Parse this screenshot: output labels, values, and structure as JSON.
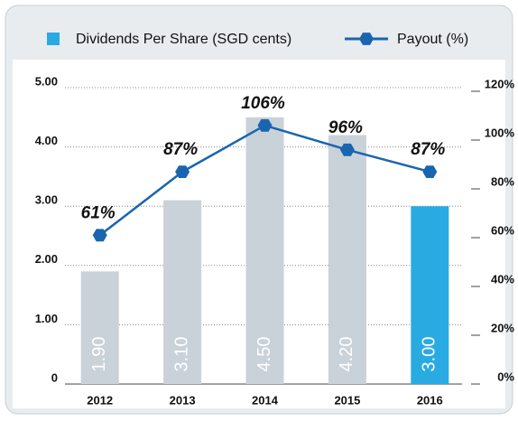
{
  "chart_data": {
    "type": "bar",
    "categories": [
      "2012",
      "2013",
      "2014",
      "2015",
      "2016"
    ],
    "series": [
      {
        "name": "Dividends Per Share (SGD cents)",
        "type": "bar",
        "color": "#29abe2",
        "colors": [
          "#c9d2d9",
          "#c9d2d9",
          "#c9d2d9",
          "#c9d2d9",
          "#29abe2"
        ],
        "values": [
          1.9,
          3.1,
          4.5,
          4.2,
          3.0
        ],
        "value_labels": [
          "1.90",
          "3.10",
          "4.50",
          "4.20",
          "3.00"
        ]
      },
      {
        "name": "Payout (%)",
        "type": "line",
        "axis": "y2",
        "color": "#1a65b0",
        "values": [
          61,
          87,
          106,
          96,
          87
        ],
        "value_labels": [
          "61%",
          "87%",
          "106%",
          "96%",
          "87%"
        ]
      }
    ],
    "ylim": [
      0,
      5
    ],
    "yticks": [
      0,
      {
        "value": 1,
        "label": "1.00"
      },
      {
        "value": 2,
        "label": "2.00"
      },
      {
        "value": 3,
        "label": "3.00"
      },
      {
        "value": 4,
        "label": "4.00"
      },
      {
        "value": 5,
        "label": "5.00"
      }
    ],
    "y2lim": [
      0,
      120
    ],
    "y2ticks": [
      {
        "value": 0,
        "label": "0%"
      },
      {
        "value": 20,
        "label": "20%"
      },
      {
        "value": 40,
        "label": "40%"
      },
      {
        "value": 60,
        "label": "60%"
      },
      {
        "value": 80,
        "label": "80%"
      },
      {
        "value": 100,
        "label": "100%"
      },
      {
        "value": 120,
        "label": "120%"
      }
    ],
    "grid": true
  }
}
